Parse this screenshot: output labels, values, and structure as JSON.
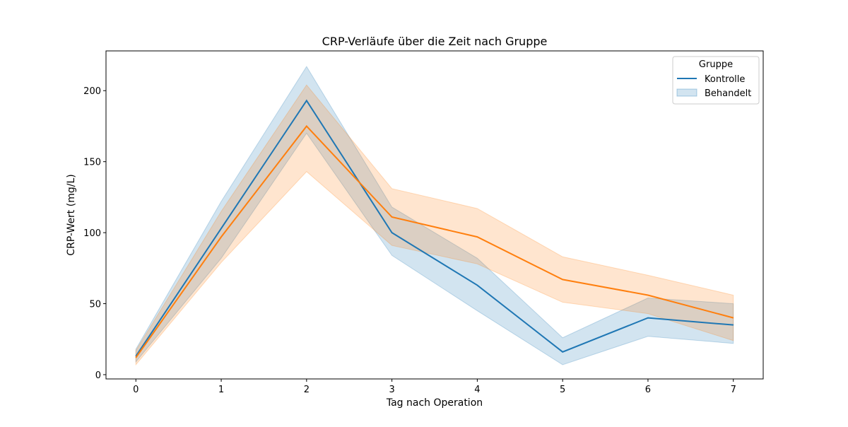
{
  "chart_data": {
    "type": "line",
    "title": "CRP-Verläufe über die Zeit nach Gruppe",
    "xlabel": "Tag nach Operation",
    "ylabel": "CRP-Wert (mg/L)",
    "x": [
      0,
      1,
      2,
      3,
      4,
      5,
      6,
      7
    ],
    "xlim": [
      -0.35,
      7.35
    ],
    "ylim": [
      -3,
      228
    ],
    "yticks": [
      0,
      50,
      100,
      150,
      200
    ],
    "xticks": [
      0,
      1,
      2,
      3,
      4,
      5,
      6,
      7
    ],
    "grid": false,
    "legend": {
      "title": "Gruppe",
      "placement": "top-right",
      "entries": [
        "Kontrolle",
        "Behandelt"
      ]
    },
    "series": [
      {
        "name": "Kontrolle",
        "color": "#1f77b4",
        "values": [
          13,
          103,
          193,
          100,
          63,
          16,
          40,
          35
        ],
        "ci_lower": [
          9,
          82,
          170,
          84,
          45,
          7,
          27,
          22
        ],
        "ci_upper": [
          18,
          122,
          217,
          118,
          82,
          26,
          54,
          50
        ]
      },
      {
        "series_key": "orange",
        "color": "#ff7f0e",
        "values": [
          12,
          97,
          175,
          111,
          97,
          67,
          56,
          40
        ],
        "ci_lower": [
          7,
          79,
          143,
          91,
          78,
          51,
          43,
          24
        ],
        "ci_upper": [
          17,
          115,
          204,
          131,
          117,
          83,
          70,
          56
        ]
      }
    ]
  }
}
